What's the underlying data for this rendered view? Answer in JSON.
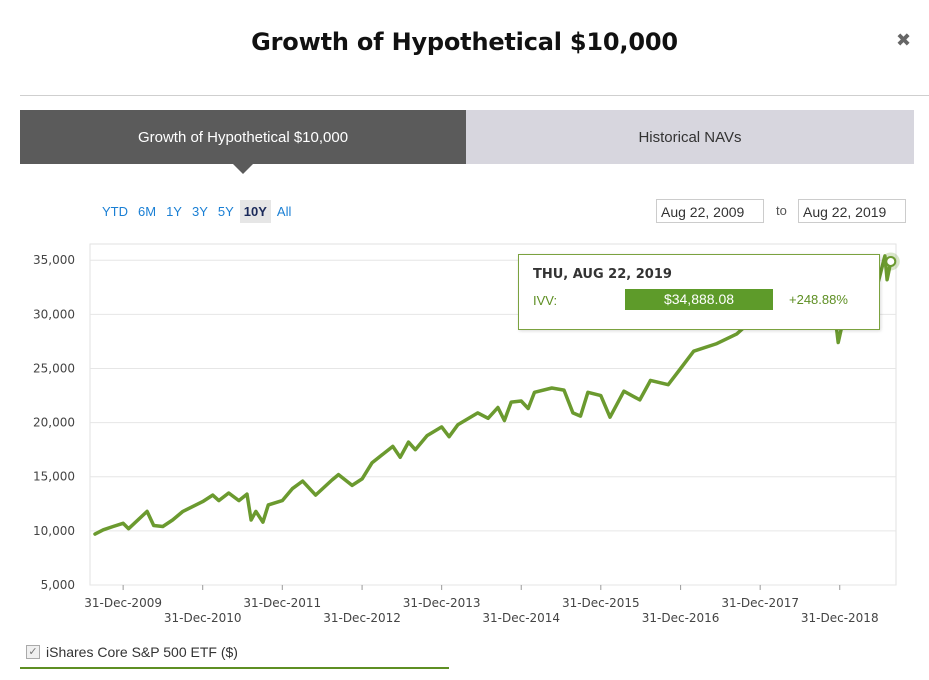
{
  "modal": {
    "title": "Growth of Hypothetical $10,000",
    "close_glyph": "✖"
  },
  "tabs": [
    {
      "label": "Growth of Hypothetical $10,000",
      "active": true
    },
    {
      "label": "Historical NAVs",
      "active": false
    }
  ],
  "range_buttons": [
    "YTD",
    "6M",
    "1Y",
    "3Y",
    "5Y",
    "10Y",
    "All"
  ],
  "range_selected": "10Y",
  "date_range": {
    "from": "Aug 22, 2009",
    "separator": "to",
    "to": "Aug 22, 2019"
  },
  "tooltip": {
    "date": "THU, AUG 22, 2019",
    "ticker": "IVV:",
    "value": "$34,888.08",
    "change": "+248.88%"
  },
  "legend": {
    "label": "iShares Core S&P 500 ETF ($)",
    "checked": true,
    "check_glyph": "✓"
  },
  "colors": {
    "series": "#6b9a2f",
    "tooltip_value_bg": "#5e9b2a",
    "tab_active": "#5b5b5b",
    "tab_inactive": "#d7d6de",
    "accent_link": "#1a7fd4"
  },
  "chart_data": {
    "type": "line",
    "x_type": "date",
    "series": [
      {
        "name": "iShares Core S&P 500 ETF ($)",
        "points": [
          [
            "2009-08-24",
            9700
          ],
          [
            "2009-10-01",
            10100
          ],
          [
            "2009-11-15",
            10400
          ],
          [
            "2009-12-31",
            10700
          ],
          [
            "2010-01-25",
            10200
          ],
          [
            "2010-04-20",
            11800
          ],
          [
            "2010-05-20",
            10500
          ],
          [
            "2010-07-01",
            10400
          ],
          [
            "2010-08-15",
            11000
          ],
          [
            "2010-10-01",
            11800
          ],
          [
            "2010-12-31",
            12700
          ],
          [
            "2011-02-15",
            13300
          ],
          [
            "2011-03-15",
            12800
          ],
          [
            "2011-04-29",
            13500
          ],
          [
            "2011-06-15",
            12800
          ],
          [
            "2011-07-22",
            13400
          ],
          [
            "2011-08-10",
            11000
          ],
          [
            "2011-09-01",
            11800
          ],
          [
            "2011-10-03",
            10800
          ],
          [
            "2011-10-28",
            12400
          ],
          [
            "2011-12-31",
            12800
          ],
          [
            "2012-02-15",
            13900
          ],
          [
            "2012-04-02",
            14600
          ],
          [
            "2012-06-01",
            13300
          ],
          [
            "2012-08-15",
            14700
          ],
          [
            "2012-09-14",
            15200
          ],
          [
            "2012-11-15",
            14200
          ],
          [
            "2012-12-31",
            14800
          ],
          [
            "2013-02-15",
            16300
          ],
          [
            "2013-05-21",
            17800
          ],
          [
            "2013-06-24",
            16800
          ],
          [
            "2013-08-01",
            18200
          ],
          [
            "2013-09-01",
            17500
          ],
          [
            "2013-10-25",
            18800
          ],
          [
            "2013-12-31",
            19600
          ],
          [
            "2014-02-03",
            18700
          ],
          [
            "2014-03-15",
            19800
          ],
          [
            "2014-06-15",
            20900
          ],
          [
            "2014-08-01",
            20400
          ],
          [
            "2014-09-15",
            21400
          ],
          [
            "2014-10-15",
            20200
          ],
          [
            "2014-11-15",
            21900
          ],
          [
            "2014-12-31",
            22000
          ],
          [
            "2015-02-01",
            21300
          ],
          [
            "2015-03-02",
            22800
          ],
          [
            "2015-05-20",
            23200
          ],
          [
            "2015-07-15",
            23000
          ],
          [
            "2015-08-25",
            20900
          ],
          [
            "2015-09-29",
            20600
          ],
          [
            "2015-11-02",
            22800
          ],
          [
            "2015-12-31",
            22500
          ],
          [
            "2016-02-11",
            20500
          ],
          [
            "2016-04-15",
            22900
          ],
          [
            "2016-06-27",
            22100
          ],
          [
            "2016-08-15",
            23900
          ],
          [
            "2016-11-04",
            23500
          ],
          [
            "2016-12-31",
            25000
          ],
          [
            "2017-03-01",
            26600
          ],
          [
            "2017-06-15",
            27300
          ],
          [
            "2017-09-15",
            28200
          ],
          [
            "2017-11-15",
            29300
          ],
          [
            "2017-12-31",
            30200
          ],
          [
            "2018-01-26",
            32200
          ],
          [
            "2018-02-08",
            29500
          ],
          [
            "2018-03-12",
            31000
          ],
          [
            "2018-04-02",
            29400
          ],
          [
            "2018-06-15",
            31200
          ],
          [
            "2018-09-20",
            33000
          ],
          [
            "2018-10-29",
            30000
          ],
          [
            "2018-12-03",
            31000
          ],
          [
            "2018-12-24",
            27400
          ],
          [
            "2019-01-31",
            30800
          ],
          [
            "2019-04-30",
            33300
          ],
          [
            "2019-06-03",
            31200
          ],
          [
            "2019-07-26",
            35400
          ],
          [
            "2019-08-05",
            33200
          ],
          [
            "2019-08-22",
            34888
          ]
        ]
      }
    ],
    "ylim": [
      5000,
      36500
    ],
    "xlim": [
      "2009-08-01",
      "2019-09-15"
    ],
    "y_ticks": [
      5000,
      10000,
      15000,
      20000,
      25000,
      30000,
      35000
    ],
    "y_tick_labels": [
      "5,000",
      "10,000",
      "15,000",
      "20,000",
      "25,000",
      "30,000",
      "35,000"
    ],
    "x_ticks": [
      "2009-12-31",
      "2010-12-31",
      "2011-12-31",
      "2012-12-31",
      "2013-12-31",
      "2014-12-31",
      "2015-12-31",
      "2016-12-31",
      "2017-12-31",
      "2018-12-31"
    ],
    "x_tick_labels": [
      "31-Dec-2009",
      "31-Dec-2010",
      "31-Dec-2011",
      "31-Dec-2012",
      "31-Dec-2013",
      "31-Dec-2014",
      "31-Dec-2015",
      "31-Dec-2016",
      "31-Dec-2017",
      "31-Dec-2018"
    ],
    "grid": true,
    "title": "",
    "xlabel": "",
    "ylabel": ""
  }
}
